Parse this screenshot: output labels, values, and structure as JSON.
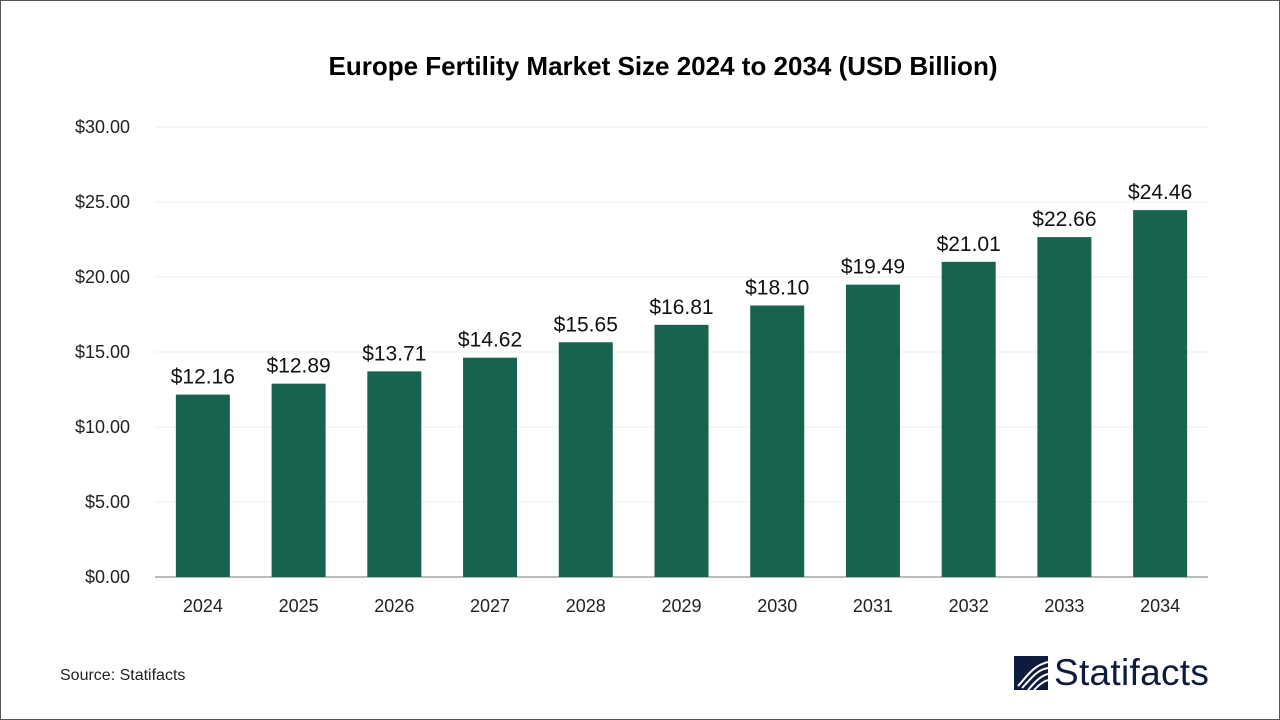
{
  "chart_data": {
    "type": "bar",
    "title": "Europe Fertility Market Size 2024 to 2034 (USD Billion)",
    "xlabel": "",
    "ylabel": "",
    "categories": [
      "2024",
      "2025",
      "2026",
      "2027",
      "2028",
      "2029",
      "2030",
      "2031",
      "2032",
      "2033",
      "2034"
    ],
    "values": [
      12.16,
      12.89,
      13.71,
      14.62,
      15.65,
      16.81,
      18.1,
      19.49,
      21.01,
      22.66,
      24.46
    ],
    "data_labels": [
      "$12.16",
      "$12.89",
      "$13.71",
      "$14.62",
      "$15.65",
      "$16.81",
      "$18.10",
      "$19.49",
      "$21.01",
      "$22.66",
      "$24.46"
    ],
    "ylim": [
      0,
      30
    ],
    "yticks": [
      0,
      5,
      10,
      15,
      20,
      25,
      30
    ],
    "ytick_labels": [
      "$0.00",
      "$5.00",
      "$10.00",
      "$15.00",
      "$20.00",
      "$25.00",
      "$30.00"
    ],
    "grid": true,
    "bar_color": "#17634f"
  },
  "footer": {
    "source": "Source: Statifacts",
    "logo_text": "Statifacts",
    "logo_color": "#0f1b3d"
  }
}
